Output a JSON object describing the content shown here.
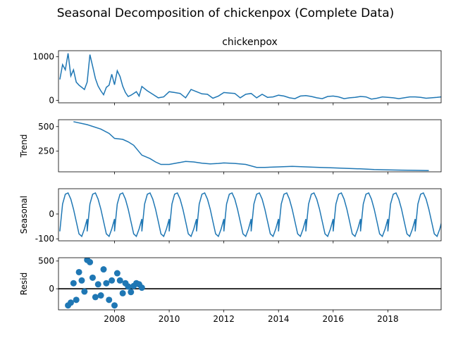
{
  "figure": {
    "title": "Seasonal Decomposition of chickenpox (Complete Data)"
  },
  "chart_data": [
    {
      "name": "observed",
      "type": "line",
      "title": "chickenpox",
      "ylabel": "",
      "xlim": [
        2005.95,
        2019.95
      ],
      "ylim": [
        -55,
        1140
      ],
      "yticks": [
        0,
        1000
      ],
      "xticks": [
        2008,
        2010,
        2012,
        2014,
        2016,
        2018
      ],
      "show_xtick_labels": false,
      "color": "#1f77b4",
      "x": [
        2006.0,
        2006.1,
        2006.2,
        2006.3,
        2006.4,
        2006.5,
        2006.6,
        2006.7,
        2006.8,
        2006.9,
        2007.0,
        2007.1,
        2007.2,
        2007.3,
        2007.4,
        2007.5,
        2007.6,
        2007.7,
        2007.8,
        2007.9,
        2008.0,
        2008.1,
        2008.2,
        2008.3,
        2008.4,
        2008.5,
        2008.6,
        2008.7,
        2008.8,
        2008.9,
        2009.0,
        2009.2,
        2009.4,
        2009.6,
        2009.8,
        2010.0,
        2010.2,
        2010.4,
        2010.6,
        2010.8,
        2011.0,
        2011.2,
        2011.4,
        2011.6,
        2011.8,
        2012.0,
        2012.2,
        2012.4,
        2012.6,
        2012.8,
        2013.0,
        2013.2,
        2013.4,
        2013.6,
        2013.8,
        2014.0,
        2014.2,
        2014.4,
        2014.6,
        2014.8,
        2015.0,
        2015.2,
        2015.4,
        2015.6,
        2015.8,
        2016.0,
        2016.2,
        2016.4,
        2016.6,
        2016.8,
        2017.0,
        2017.2,
        2017.4,
        2017.6,
        2017.8,
        2018.0,
        2018.2,
        2018.4,
        2018.6,
        2018.8,
        2019.0,
        2019.2,
        2019.4,
        2019.6,
        2019.8,
        2019.95
      ],
      "y": [
        480,
        820,
        700,
        1080,
        560,
        700,
        420,
        350,
        300,
        250,
        420,
        1050,
        780,
        500,
        330,
        220,
        130,
        300,
        350,
        600,
        360,
        680,
        550,
        330,
        180,
        90,
        120,
        160,
        200,
        100,
        320,
        220,
        140,
        60,
        80,
        200,
        180,
        160,
        60,
        250,
        200,
        150,
        140,
        50,
        100,
        180,
        170,
        160,
        60,
        140,
        160,
        60,
        140,
        70,
        80,
        120,
        100,
        60,
        40,
        100,
        110,
        90,
        60,
        40,
        90,
        100,
        80,
        40,
        60,
        70,
        90,
        80,
        30,
        50,
        80,
        70,
        60,
        40,
        60,
        80,
        80,
        70,
        50,
        60,
        70,
        80
      ]
    },
    {
      "name": "trend",
      "type": "line",
      "title": "",
      "ylabel": "Trend",
      "xlim": [
        2005.95,
        2019.95
      ],
      "ylim": [
        40,
        570
      ],
      "yticks": [
        250,
        500
      ],
      "xticks": [
        2008,
        2010,
        2012,
        2014,
        2016,
        2018
      ],
      "show_xtick_labels": false,
      "color": "#1f77b4",
      "x": [
        2006.5,
        2007.0,
        2007.5,
        2007.8,
        2008.0,
        2008.3,
        2008.5,
        2008.7,
        2009.0,
        2009.3,
        2009.5,
        2009.7,
        2010.0,
        2010.3,
        2010.6,
        2010.9,
        2011.2,
        2011.5,
        2011.8,
        2012.0,
        2012.4,
        2012.8,
        2013.2,
        2013.5,
        2014.0,
        2014.5,
        2015.0,
        2015.5,
        2016.0,
        2016.5,
        2017.0,
        2017.5,
        2018.0,
        2018.5,
        2019.0,
        2019.5
      ],
      "y": [
        550,
        520,
        475,
        430,
        380,
        370,
        345,
        310,
        210,
        175,
        140,
        115,
        115,
        130,
        145,
        140,
        128,
        120,
        125,
        130,
        125,
        115,
        85,
        85,
        90,
        95,
        90,
        85,
        80,
        75,
        70,
        63,
        60,
        57,
        55,
        52
      ]
    },
    {
      "name": "seasonal",
      "type": "line",
      "title": "",
      "ylabel": "Seasonal",
      "xlim": [
        2005.95,
        2019.95
      ],
      "ylim": [
        -108,
        102
      ],
      "yticks": [
        -100,
        0
      ],
      "xticks": [
        2008,
        2010,
        2012,
        2014,
        2016,
        2018
      ],
      "show_xtick_labels": false,
      "color": "#1f77b4",
      "x": [
        2006.0,
        2006.1,
        2006.2,
        2006.3,
        2006.4,
        2006.5,
        2006.6,
        2006.7,
        2006.8,
        2006.9,
        2007.0
      ],
      "y": [
        -70,
        40,
        80,
        85,
        60,
        20,
        -30,
        -80,
        -90,
        -60,
        -20
      ],
      "period_years": 1.0,
      "note_repeats": true
    },
    {
      "name": "resid",
      "type": "scatter",
      "title": "",
      "ylabel": "Resid",
      "xlim": [
        2005.95,
        2019.95
      ],
      "ylim": [
        -380,
        560
      ],
      "yticks": [
        0,
        500
      ],
      "xticks": [
        2008,
        2010,
        2012,
        2014,
        2016,
        2018
      ],
      "show_xtick_labels": true,
      "color": "#1f77b4",
      "x": [
        2006.3,
        2006.4,
        2006.5,
        2006.6,
        2006.7,
        2006.8,
        2006.9,
        2007.0,
        2007.1,
        2007.2,
        2007.3,
        2007.4,
        2007.5,
        2007.6,
        2007.7,
        2007.8,
        2007.9,
        2008.0,
        2008.1,
        2008.2,
        2008.3,
        2008.4,
        2008.5,
        2008.6,
        2008.7,
        2008.8,
        2008.9,
        2009.0
      ],
      "y": [
        -300,
        -250,
        100,
        -200,
        300,
        150,
        -50,
        520,
        480,
        200,
        -150,
        80,
        -120,
        350,
        100,
        -200,
        150,
        -300,
        280,
        150,
        -80,
        100,
        40,
        -60,
        50,
        100,
        80,
        20
      ],
      "baseline": 0
    }
  ]
}
